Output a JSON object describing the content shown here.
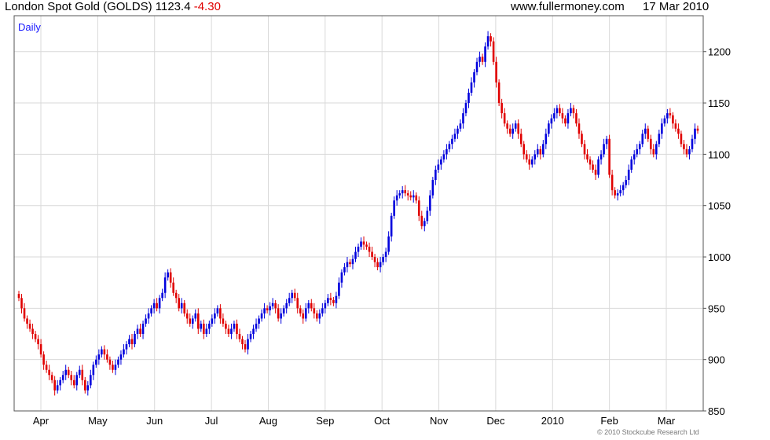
{
  "header": {
    "title": "London Spot Gold (GOLDS) 1123.4",
    "change": "-4.30",
    "site": "www.fullermoney.com",
    "date": "17 Mar 2010"
  },
  "footer": {
    "credit": "© 2010 Stockcube Research Ltd"
  },
  "colors": {
    "up": "#0000dd",
    "down": "#e00000",
    "grid": "#d9d9d9",
    "frame": "#555555"
  },
  "chart_data": {
    "type": "candlestick",
    "period_label": "Daily",
    "ylim": [
      850,
      1235
    ],
    "y_ticks": [
      850,
      900,
      950,
      1000,
      1050,
      1100,
      1150,
      1200
    ],
    "x_ticks": [
      "Apr",
      "May",
      "Jun",
      "Jul",
      "Aug",
      "Sep",
      "Oct",
      "Nov",
      "Dec",
      "2010",
      "Feb",
      "Mar"
    ],
    "close_series_approx": [
      960,
      950,
      940,
      935,
      930,
      925,
      920,
      915,
      905,
      895,
      890,
      885,
      880,
      870,
      875,
      880,
      885,
      890,
      885,
      880,
      875,
      885,
      890,
      880,
      870,
      875,
      885,
      895,
      900,
      905,
      910,
      905,
      900,
      895,
      890,
      895,
      900,
      905,
      910,
      915,
      920,
      915,
      925,
      930,
      925,
      935,
      940,
      945,
      950,
      955,
      950,
      960,
      965,
      980,
      985,
      975,
      965,
      960,
      950,
      955,
      945,
      940,
      935,
      940,
      945,
      930,
      935,
      925,
      930,
      935,
      940,
      945,
      950,
      940,
      935,
      930,
      925,
      930,
      935,
      925,
      920,
      915,
      910,
      920,
      925,
      930,
      935,
      940,
      945,
      950,
      948,
      952,
      955,
      950,
      940,
      945,
      950,
      955,
      960,
      965,
      960,
      950,
      945,
      940,
      950,
      955,
      950,
      945,
      940,
      945,
      950,
      955,
      960,
      958,
      955,
      962,
      975,
      985,
      990,
      995,
      993,
      998,
      1005,
      1010,
      1015,
      1012,
      1010,
      1005,
      1000,
      995,
      990,
      995,
      1000,
      1005,
      1020,
      1040,
      1055,
      1060,
      1062,
      1065,
      1062,
      1060,
      1058,
      1060,
      1055,
      1040,
      1030,
      1035,
      1045,
      1060,
      1075,
      1085,
      1090,
      1095,
      1100,
      1105,
      1110,
      1115,
      1120,
      1125,
      1130,
      1140,
      1150,
      1160,
      1170,
      1180,
      1190,
      1195,
      1190,
      1205,
      1215,
      1210,
      1190,
      1170,
      1150,
      1140,
      1130,
      1125,
      1120,
      1125,
      1130,
      1120,
      1110,
      1100,
      1095,
      1090,
      1095,
      1100,
      1105,
      1100,
      1110,
      1120,
      1130,
      1135,
      1140,
      1145,
      1140,
      1135,
      1130,
      1140,
      1145,
      1140,
      1130,
      1120,
      1110,
      1100,
      1095,
      1090,
      1085,
      1080,
      1095,
      1100,
      1110,
      1115,
      1080,
      1065,
      1060,
      1062,
      1065,
      1070,
      1075,
      1085,
      1095,
      1100,
      1105,
      1110,
      1120,
      1125,
      1115,
      1105,
      1100,
      1110,
      1120,
      1130,
      1135,
      1140,
      1138,
      1130,
      1125,
      1120,
      1110,
      1105,
      1100,
      1105,
      1115,
      1125,
      1123
    ]
  }
}
